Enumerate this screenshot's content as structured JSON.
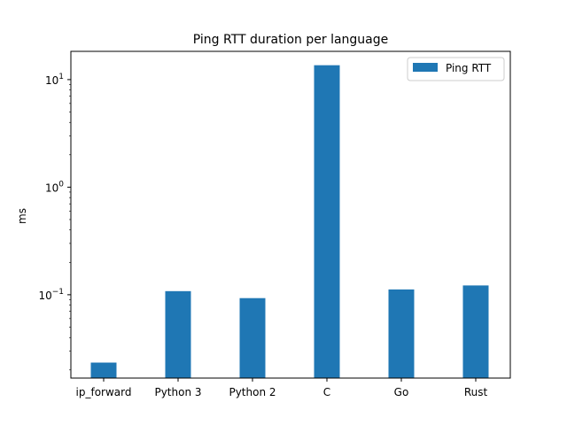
{
  "chart_data": {
    "type": "bar",
    "title": "Ping RTT duration per language",
    "xlabel": "",
    "ylabel": "ms",
    "yscale": "log",
    "ylim": [
      0.0168,
      18.3
    ],
    "y_ticks": [
      {
        "value": 0.1,
        "base": "10",
        "exp": "−1"
      },
      {
        "value": 1,
        "base": "10",
        "exp": "0"
      },
      {
        "value": 10,
        "base": "10",
        "exp": "1"
      }
    ],
    "categories": [
      "ip_forward",
      "Python 3",
      "Python 2",
      "C",
      "Go",
      "Rust"
    ],
    "series": [
      {
        "name": "Ping RTT",
        "values": [
          0.0234,
          0.108,
          0.093,
          13.6,
          0.112,
          0.122
        ],
        "color": "#1f77b4"
      }
    ],
    "legend_placement": "top-right",
    "grid": false
  }
}
